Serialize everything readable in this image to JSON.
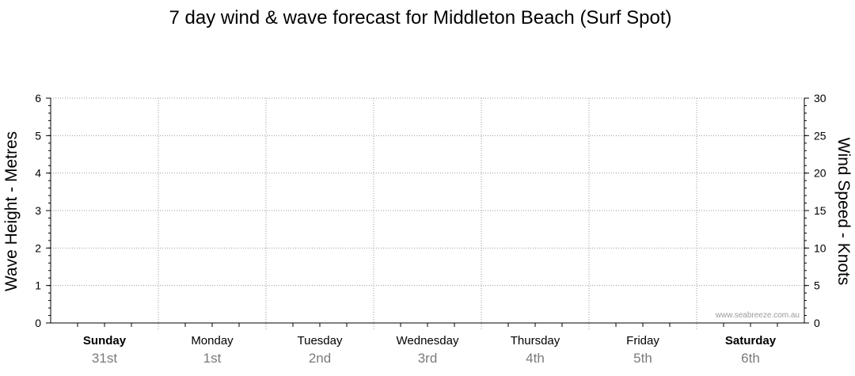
{
  "chart_data": {
    "type": "line",
    "title": "7 day wind & wave forecast for Middleton Beach  (Surf Spot)",
    "ylabel_left": "Wave Height - Metres",
    "ylabel_right": "Wind Speed - Knots",
    "ylim_left": [
      0,
      6
    ],
    "ylim_right": [
      0,
      30
    ],
    "yticks_left": [
      "0",
      "1",
      "2",
      "3",
      "4",
      "5",
      "6"
    ],
    "yticks_right": [
      "0",
      "5",
      "10",
      "15",
      "20",
      "25",
      "30"
    ],
    "days": [
      {
        "name": "Sunday",
        "date": "31st",
        "bold": true
      },
      {
        "name": "Monday",
        "date": "1st",
        "bold": false
      },
      {
        "name": "Tuesday",
        "date": "2nd",
        "bold": false
      },
      {
        "name": "Wednesday",
        "date": "3rd",
        "bold": false
      },
      {
        "name": "Thursday",
        "date": "4th",
        "bold": false
      },
      {
        "name": "Friday",
        "date": "5th",
        "bold": false
      },
      {
        "name": "Saturday",
        "date": "6th",
        "bold": true
      }
    ],
    "grid": true,
    "series": [],
    "credit": "www.seabreeze.com.au"
  }
}
